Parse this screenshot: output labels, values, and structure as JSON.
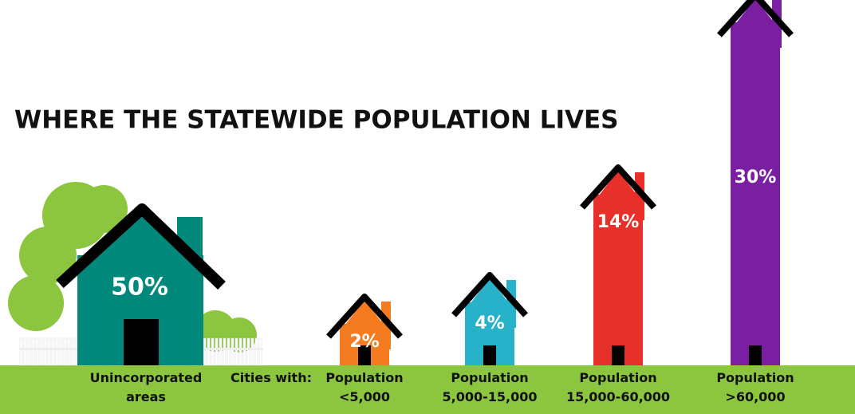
{
  "chart_data": {
    "type": "house-bar",
    "title": "WHERE THE STATEWIDE POPULATION LIVES",
    "group_label": "Cities with:",
    "categories": [
      "Unincorporated areas",
      "Population <5,000",
      "Population 5,000-15,000",
      "Population 15,000-60,000",
      "Population >60,000"
    ],
    "values": [
      50,
      2,
      4,
      14,
      30
    ],
    "value_labels": [
      "50%",
      "2%",
      "4%",
      "14%",
      "30%"
    ],
    "colors": [
      "#00897b",
      "#f47b20",
      "#27b2c9",
      "#e8302a",
      "#7b1fa2"
    ]
  }
}
